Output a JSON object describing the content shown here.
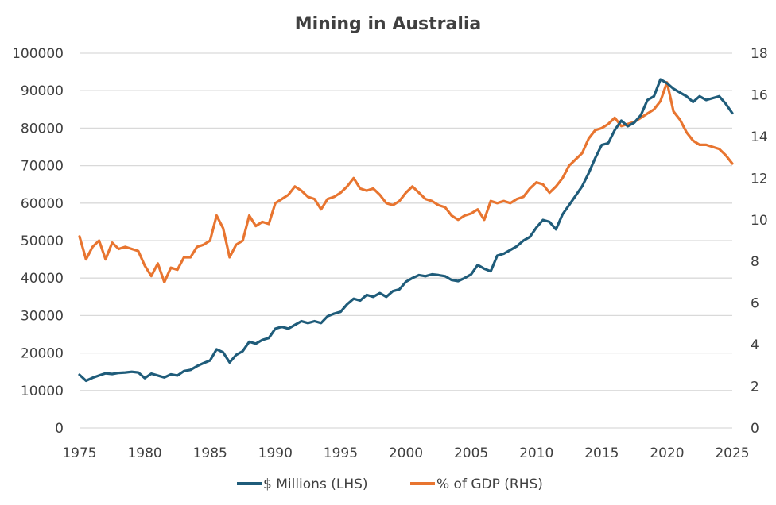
{
  "chart_data": {
    "type": "line",
    "title": "Mining in Australia",
    "xlabel": "",
    "ylabel_left": "",
    "ylabel_right": "",
    "xlim": [
      1975,
      2025
    ],
    "ylim_left": [
      0,
      100000
    ],
    "ylim_right": [
      0,
      18
    ],
    "grid": true,
    "legend_position": "bottom",
    "x_ticks": [
      "1975",
      "1980",
      "1985",
      "1990",
      "1995",
      "2000",
      "2005",
      "2010",
      "2015",
      "2020",
      "2025"
    ],
    "y_ticks_left": [
      "0",
      "10000",
      "20000",
      "30000",
      "40000",
      "50000",
      "60000",
      "70000",
      "80000",
      "90000",
      "100000"
    ],
    "y_ticks_right": [
      "0",
      "2",
      "4",
      "6",
      "8",
      "10",
      "12",
      "14",
      "16",
      "18"
    ],
    "x": [
      1975,
      1975.5,
      1976,
      1976.5,
      1977,
      1977.5,
      1978,
      1978.5,
      1979,
      1979.5,
      1980,
      1980.5,
      1981,
      1981.5,
      1982,
      1982.5,
      1983,
      1983.5,
      1984,
      1984.5,
      1985,
      1985.5,
      1986,
      1986.5,
      1987,
      1987.5,
      1988,
      1988.5,
      1989,
      1989.5,
      1990,
      1990.5,
      1991,
      1991.5,
      1992,
      1992.5,
      1993,
      1993.5,
      1994,
      1994.5,
      1995,
      1995.5,
      1996,
      1996.5,
      1997,
      1997.5,
      1998,
      1998.5,
      1999,
      1999.5,
      2000,
      2000.5,
      2001,
      2001.5,
      2002,
      2002.5,
      2003,
      2003.5,
      2004,
      2004.5,
      2005,
      2005.5,
      2006,
      2006.5,
      2007,
      2007.5,
      2008,
      2008.5,
      2009,
      2009.5,
      2010,
      2010.5,
      2011,
      2011.5,
      2012,
      2012.5,
      2013,
      2013.5,
      2014,
      2014.5,
      2015,
      2015.5,
      2016,
      2016.5,
      2017,
      2017.5,
      2018,
      2018.5,
      2019,
      2019.5,
      2020,
      2020.5,
      2021,
      2021.5,
      2022,
      2022.5,
      2023,
      2023.5,
      2024,
      2024.5,
      2025
    ],
    "series": [
      {
        "name": "$ Millions (LHS)",
        "axis": "left",
        "color": "#1f5c7a",
        "values": [
          14200,
          12600,
          13400,
          14000,
          14600,
          14400,
          14700,
          14800,
          15000,
          14800,
          13300,
          14500,
          14000,
          13500,
          14300,
          14000,
          15200,
          15500,
          16500,
          17300,
          18000,
          21000,
          20200,
          17500,
          19500,
          20500,
          23000,
          22500,
          23500,
          24000,
          26500,
          27000,
          26500,
          27500,
          28500,
          28000,
          28500,
          28000,
          29800,
          30500,
          31000,
          33000,
          34500,
          34000,
          35500,
          35000,
          36000,
          35000,
          36500,
          37000,
          39000,
          40000,
          40800,
          40500,
          41000,
          40800,
          40500,
          39500,
          39200,
          40000,
          41000,
          43500,
          42500,
          41800,
          46000,
          46500,
          47500,
          48500,
          50000,
          51000,
          53500,
          55500,
          55000,
          53000,
          57000,
          59500,
          62000,
          64500,
          68000,
          72000,
          75500,
          76000,
          79500,
          82000,
          80500,
          81500,
          83500,
          87500,
          88500,
          93000,
          92000,
          90500,
          89500,
          88500,
          87000,
          88500,
          87500,
          88000,
          88500,
          86500,
          84000
        ]
      },
      {
        "name": "% of GDP (RHS)",
        "axis": "right",
        "color": "#e87530",
        "values": [
          9.2,
          8.1,
          8.7,
          9.0,
          8.1,
          8.9,
          8.6,
          8.7,
          8.6,
          8.5,
          7.8,
          7.3,
          7.9,
          7.0,
          7.7,
          7.6,
          8.2,
          8.2,
          8.7,
          8.8,
          9.0,
          10.2,
          9.6,
          8.2,
          8.8,
          9.0,
          10.2,
          9.7,
          9.9,
          9.8,
          10.8,
          11.0,
          11.2,
          11.6,
          11.4,
          11.1,
          11.0,
          10.5,
          11.0,
          11.1,
          11.3,
          11.6,
          12.0,
          11.5,
          11.4,
          11.5,
          11.2,
          10.8,
          10.7,
          10.9,
          11.3,
          11.6,
          11.3,
          11.0,
          10.9,
          10.7,
          10.6,
          10.2,
          10.0,
          10.2,
          10.3,
          10.5,
          10.0,
          10.9,
          10.8,
          10.9,
          10.8,
          11.0,
          11.1,
          11.5,
          11.8,
          11.7,
          11.3,
          11.6,
          12.0,
          12.6,
          12.9,
          13.2,
          13.9,
          14.3,
          14.4,
          14.6,
          14.9,
          14.5,
          14.6,
          14.7,
          14.9,
          15.1,
          15.3,
          15.7,
          16.6,
          15.2,
          14.8,
          14.2,
          13.8,
          13.6,
          13.6,
          13.5,
          13.4,
          13.1,
          12.7
        ]
      }
    ]
  }
}
